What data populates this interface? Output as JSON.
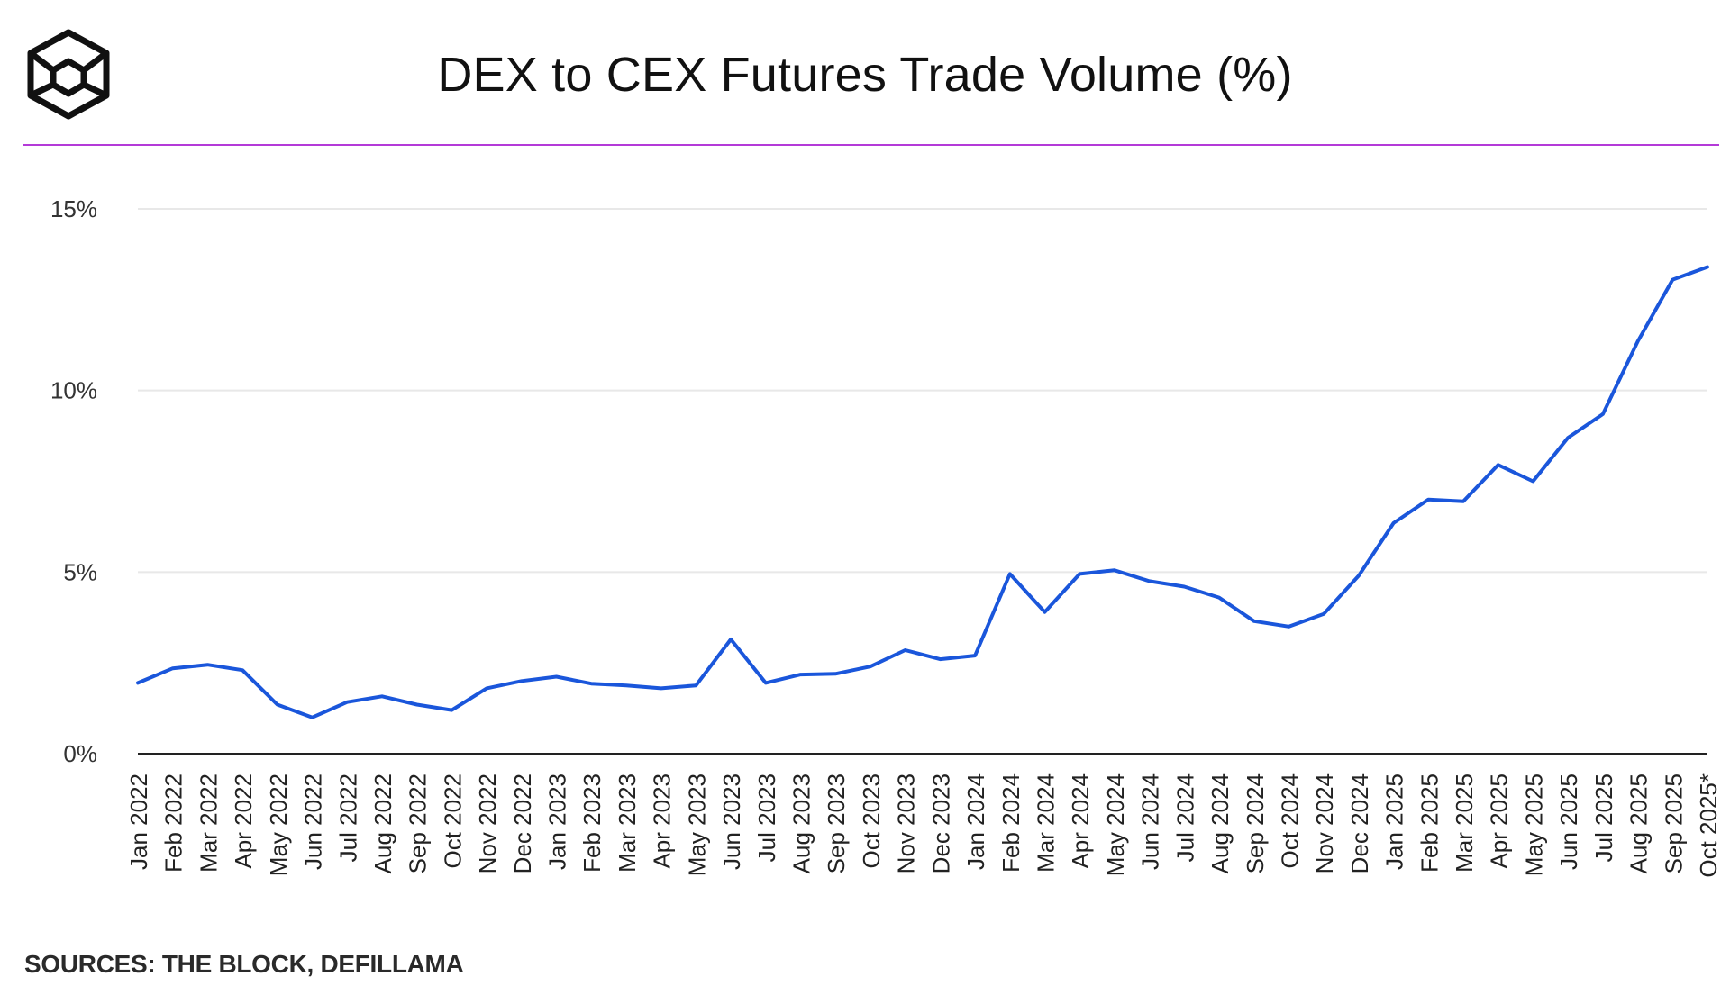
{
  "header": {
    "logo_icon": "cube-logo-icon",
    "title": "DEX to CEX Futures Trade Volume (%)",
    "rule_color": "#b43ad8"
  },
  "footer": {
    "source": "SOURCES: THE BLOCK, DEFILLAMA"
  },
  "chart_data": {
    "type": "line",
    "title": "DEX to CEX Futures Trade Volume (%)",
    "xlabel": "",
    "ylabel": "",
    "ylim": [
      0,
      15
    ],
    "yticks": [
      0,
      5,
      10,
      15
    ],
    "ytick_labels": [
      "0%",
      "5%",
      "10%",
      "15%"
    ],
    "grid": true,
    "legend": "none",
    "line_color": "#1a56db",
    "categories": [
      "Jan 2022",
      "Feb 2022",
      "Mar 2022",
      "Apr 2022",
      "May 2022",
      "Jun 2022",
      "Jul 2022",
      "Aug 2022",
      "Sep 2022",
      "Oct 2022",
      "Nov 2022",
      "Dec 2022",
      "Jan 2023",
      "Feb 2023",
      "Mar 2023",
      "Apr 2023",
      "May 2023",
      "Jun 2023",
      "Jul 2023",
      "Aug 2023",
      "Sep 2023",
      "Oct 2023",
      "Nov 2023",
      "Dec 2023",
      "Jan 2024",
      "Feb 2024",
      "Mar 2024",
      "Apr 2024",
      "May 2024",
      "Jun 2024",
      "Jul 2024",
      "Aug 2024",
      "Sep 2024",
      "Oct 2024",
      "Nov 2024",
      "Dec 2024",
      "Jan 2025",
      "Feb 2025",
      "Mar 2025",
      "Apr 2025",
      "May 2025",
      "Jun 2025",
      "Jul 2025",
      "Aug 2025",
      "Sep 2025",
      "Oct 2025*"
    ],
    "series": [
      {
        "values": [
          1.95,
          2.35,
          2.45,
          2.3,
          1.35,
          1.0,
          1.42,
          1.58,
          1.35,
          1.2,
          1.8,
          2.0,
          2.12,
          1.93,
          1.88,
          1.8,
          1.88,
          3.15,
          1.95,
          2.18,
          2.2,
          2.4,
          2.85,
          2.6,
          2.7,
          4.95,
          3.9,
          4.95,
          5.05,
          4.75,
          4.6,
          4.3,
          3.65,
          3.5,
          3.85,
          4.9,
          6.35,
          7.0,
          6.95,
          7.95,
          7.5,
          8.7,
          9.35,
          11.35,
          13.05,
          13.4
        ]
      }
    ]
  }
}
